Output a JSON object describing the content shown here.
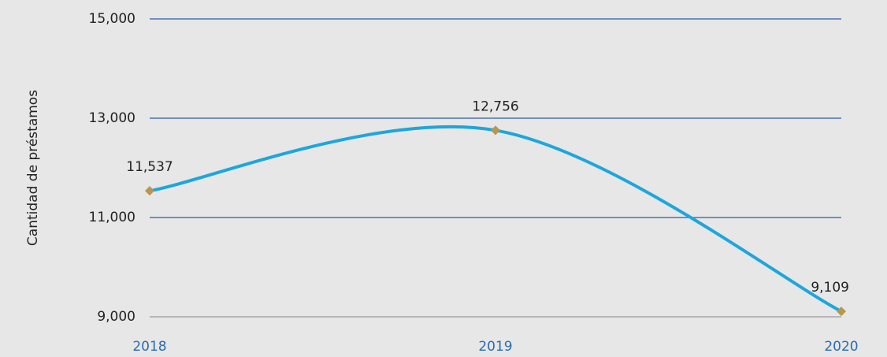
{
  "chart_data": {
    "type": "line",
    "y_axis_label": "Cantidad de préstamos",
    "categories": [
      "2018",
      "2019",
      "2020"
    ],
    "series": [
      {
        "name": "Cantidad de préstamos",
        "color": "#1ea6dc",
        "marker_color": "#b8964e",
        "values": [
          11537,
          12756,
          9109
        ],
        "value_labels": [
          "11,537",
          "12,756",
          "9,109"
        ]
      }
    ],
    "ylim": [
      9000,
      15000
    ],
    "yticks": [
      {
        "value": 9000,
        "label": "9,000"
      },
      {
        "value": 11000,
        "label": "11,000"
      },
      {
        "value": 13000,
        "label": "13,000"
      },
      {
        "value": 15000,
        "label": "15,000"
      }
    ],
    "grid": true
  }
}
